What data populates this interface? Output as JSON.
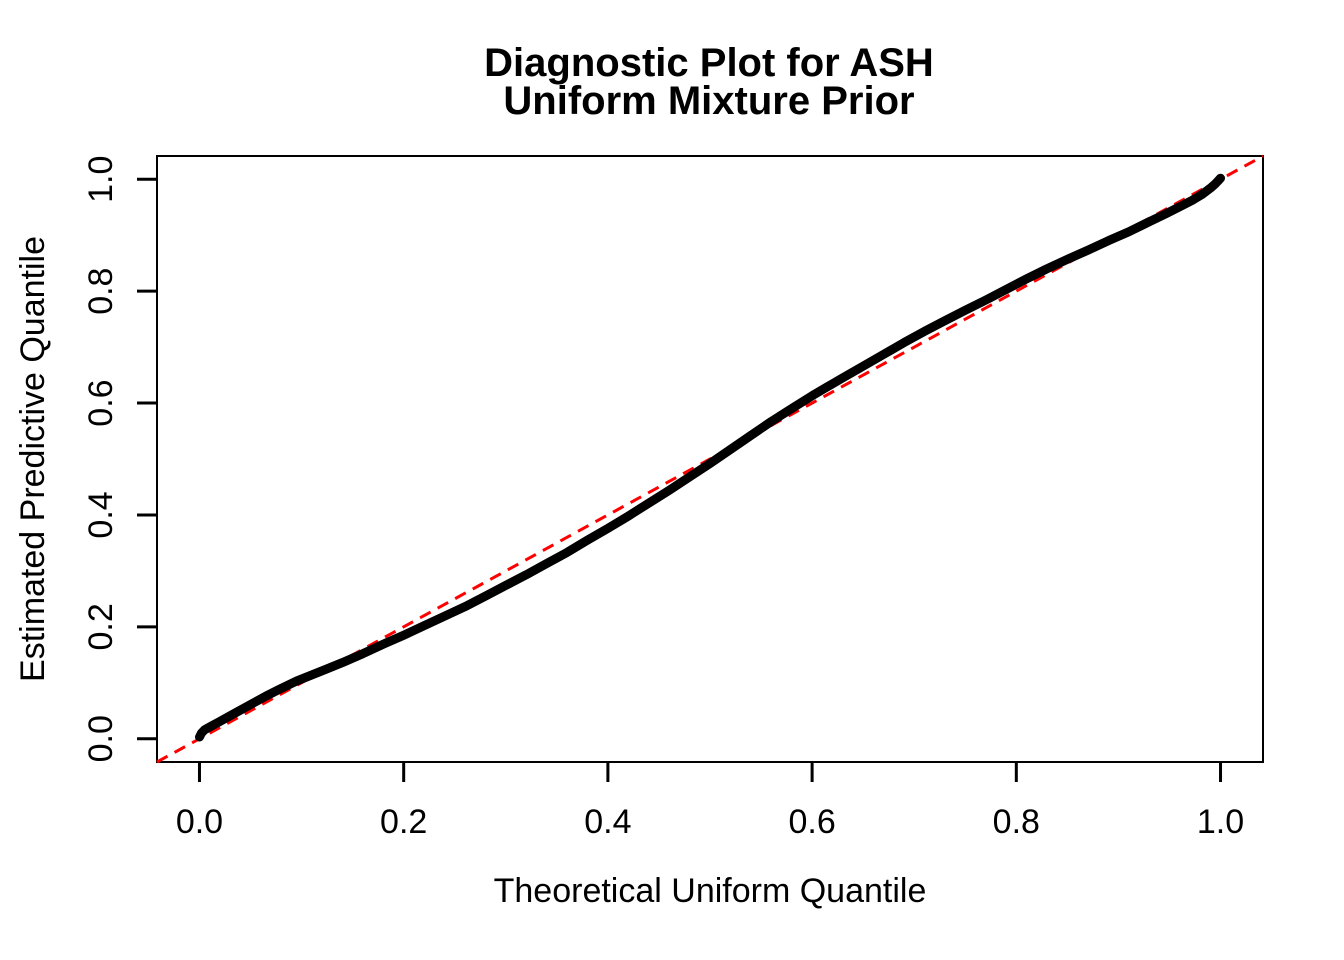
{
  "title": {
    "line1": "Diagnostic Plot for ASH",
    "line2": "Uniform Mixture Prior"
  },
  "chart_data": {
    "type": "scatter",
    "title": "Diagnostic Plot for ASH\nUniform Mixture Prior",
    "xlabel": "Theoretical Uniform Quantile",
    "ylabel": "Estimated Predictive Quantile",
    "xlim": [
      -0.0416,
      1.0416
    ],
    "ylim": [
      -0.0416,
      1.0416
    ],
    "x_ticks": [
      0.0,
      0.2,
      0.4,
      0.6,
      0.8,
      1.0
    ],
    "x_tick_labels": [
      "0.0",
      "0.2",
      "0.4",
      "0.6",
      "0.8",
      "1.0"
    ],
    "y_ticks": [
      0.0,
      0.2,
      0.4,
      0.6,
      0.8,
      1.0
    ],
    "y_tick_labels": [
      "0.0",
      "0.2",
      "0.4",
      "0.6",
      "0.8",
      "1.0"
    ],
    "grid": false,
    "legend": null,
    "series": [
      {
        "name": "estimated_predictive_quantiles",
        "type": "line",
        "color": "#000000",
        "line_width": 9,
        "points": [
          [
            0.0,
            0.003
          ],
          [
            0.002,
            0.01
          ],
          [
            0.005,
            0.016
          ],
          [
            0.01,
            0.021
          ],
          [
            0.02,
            0.031
          ],
          [
            0.035,
            0.046
          ],
          [
            0.05,
            0.061
          ],
          [
            0.065,
            0.076
          ],
          [
            0.08,
            0.09
          ],
          [
            0.095,
            0.103
          ],
          [
            0.11,
            0.114
          ],
          [
            0.125,
            0.125
          ],
          [
            0.14,
            0.136
          ],
          [
            0.16,
            0.152
          ],
          [
            0.18,
            0.169
          ],
          [
            0.2,
            0.185
          ],
          [
            0.22,
            0.202
          ],
          [
            0.24,
            0.219
          ],
          [
            0.26,
            0.236
          ],
          [
            0.28,
            0.255
          ],
          [
            0.3,
            0.274
          ],
          [
            0.32,
            0.293
          ],
          [
            0.34,
            0.313
          ],
          [
            0.36,
            0.333
          ],
          [
            0.38,
            0.355
          ],
          [
            0.4,
            0.376
          ],
          [
            0.42,
            0.398
          ],
          [
            0.44,
            0.421
          ],
          [
            0.46,
            0.444
          ],
          [
            0.48,
            0.468
          ],
          [
            0.5,
            0.492
          ],
          [
            0.52,
            0.517
          ],
          [
            0.54,
            0.542
          ],
          [
            0.56,
            0.567
          ],
          [
            0.58,
            0.59
          ],
          [
            0.6,
            0.613
          ],
          [
            0.615,
            0.629
          ],
          [
            0.63,
            0.645
          ],
          [
            0.65,
            0.666
          ],
          [
            0.67,
            0.687
          ],
          [
            0.69,
            0.708
          ],
          [
            0.71,
            0.728
          ],
          [
            0.73,
            0.747
          ],
          [
            0.75,
            0.766
          ],
          [
            0.77,
            0.784
          ],
          [
            0.79,
            0.803
          ],
          [
            0.81,
            0.822
          ],
          [
            0.83,
            0.84
          ],
          [
            0.85,
            0.857
          ],
          [
            0.87,
            0.873
          ],
          [
            0.89,
            0.89
          ],
          [
            0.91,
            0.906
          ],
          [
            0.93,
            0.924
          ],
          [
            0.945,
            0.937
          ],
          [
            0.96,
            0.951
          ],
          [
            0.972,
            0.962
          ],
          [
            0.982,
            0.973
          ],
          [
            0.99,
            0.984
          ],
          [
            0.995,
            0.992
          ],
          [
            0.998,
            0.998
          ],
          [
            1.0,
            1.002
          ]
        ]
      },
      {
        "name": "reference_line_y_equals_x",
        "type": "line",
        "style": "dashed",
        "color": "#FF0000",
        "line_width": 3,
        "points": [
          [
            -0.0416,
            -0.0416
          ],
          [
            1.0416,
            1.0416
          ]
        ]
      }
    ]
  },
  "colors": {
    "background": "#FFFFFF",
    "axis": "#000000",
    "curve": "#000000",
    "reference": "#FF0000"
  }
}
